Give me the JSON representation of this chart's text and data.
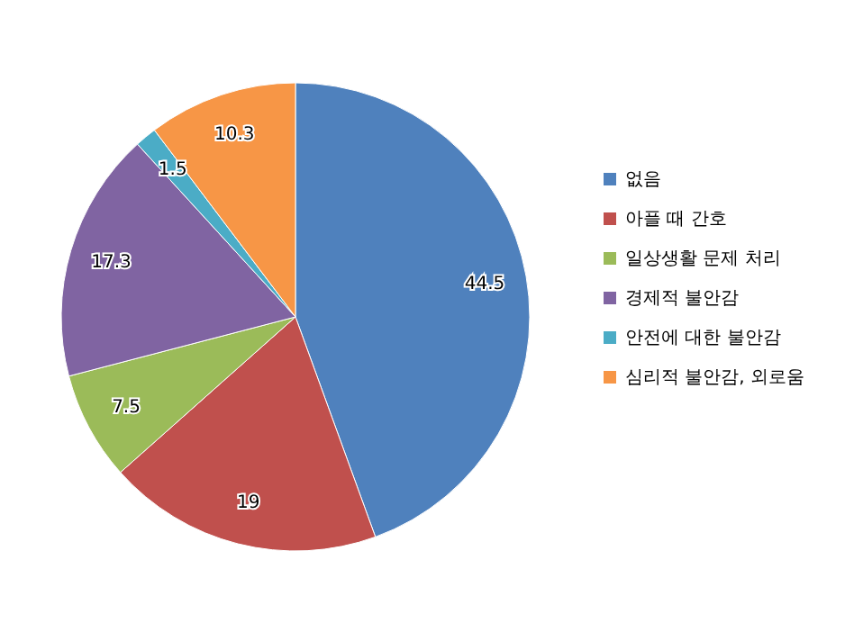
{
  "chart_data": {
    "type": "pie",
    "categories": [
      "없음",
      "아플 때 간호",
      "일상생활 문제 처리",
      "경제적 불안감",
      "안전에 대한 불안감",
      "심리적 불안감, 외로움"
    ],
    "values": [
      44.5,
      19,
      7.5,
      17.3,
      1.5,
      10.3
    ],
    "colors": [
      "#4f81bd",
      "#c0504d",
      "#9bbb59",
      "#8064a2",
      "#4bacc6",
      "#f79646"
    ],
    "data_labels": true,
    "legend": "right"
  }
}
